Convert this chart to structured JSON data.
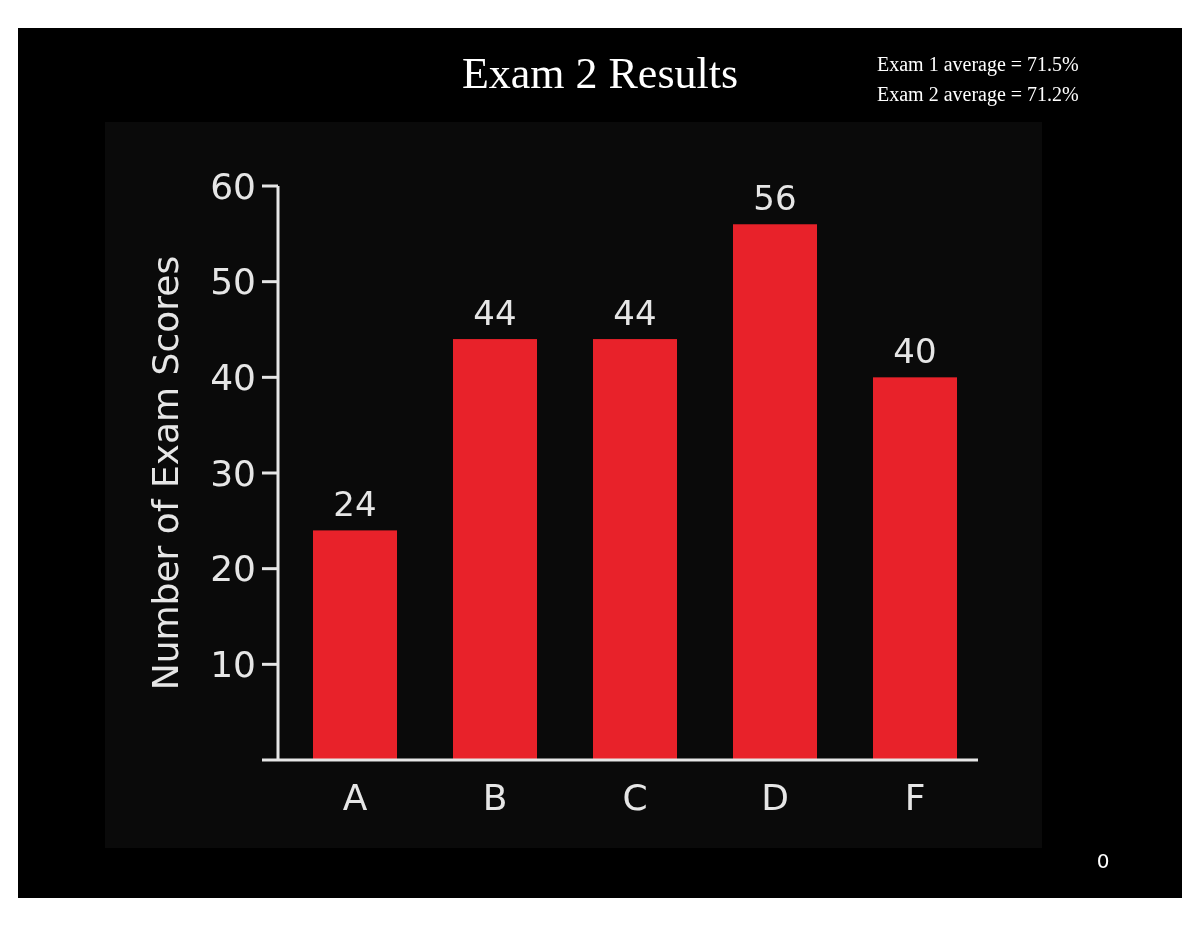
{
  "chart_data": {
    "type": "bar",
    "title": "Exam 2 Results",
    "ylabel": "Number of Exam Scores",
    "categories": [
      "A",
      "B",
      "C",
      "D",
      "F"
    ],
    "values": [
      24,
      44,
      44,
      56,
      40
    ],
    "color": "#e8222a",
    "ylim": [
      0,
      60
    ],
    "yticks": [
      10,
      20,
      30,
      40,
      50,
      60
    ],
    "data_labels": true,
    "grid": false,
    "annotations": [
      "Exam 1 average = 71.5%",
      "Exam 2 average = 71.2%",
      "0"
    ]
  }
}
